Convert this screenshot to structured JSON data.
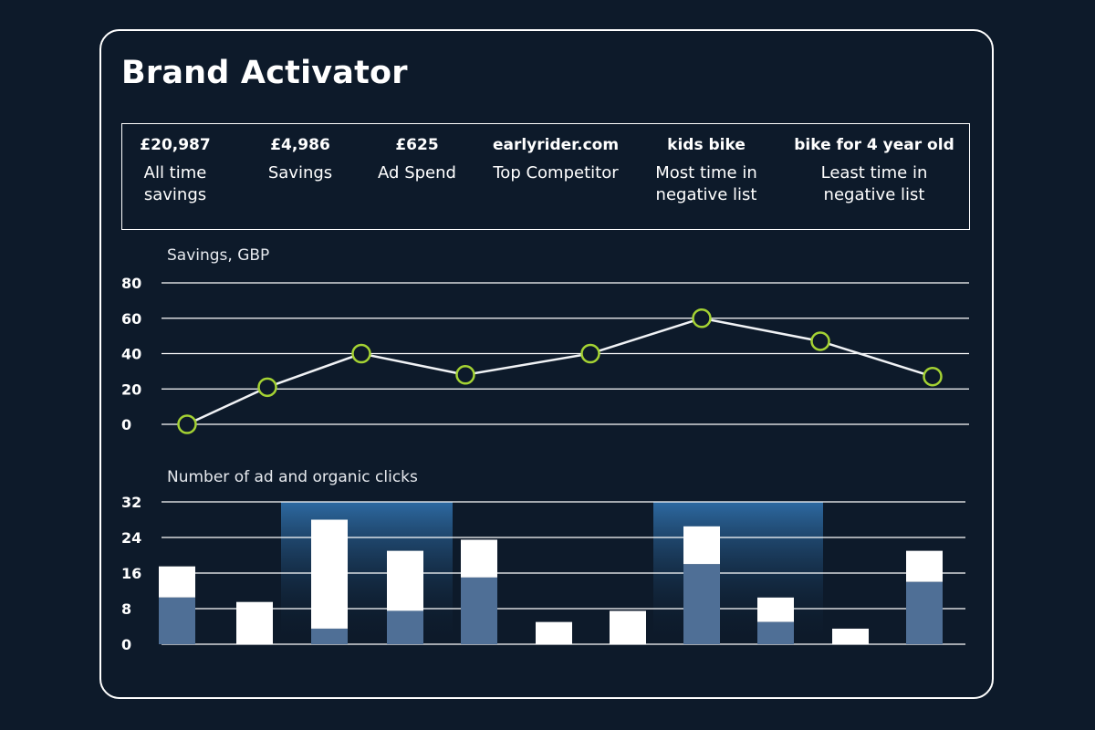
{
  "title": "Brand Activator",
  "stats": [
    {
      "value": "£20,987",
      "label": "All time\nsavings"
    },
    {
      "value": "£4,986",
      "label": "Savings"
    },
    {
      "value": "£625",
      "label": "Ad Spend"
    },
    {
      "value": "earlyrider.com",
      "label": "Top Competitor"
    },
    {
      "value": "kids bike",
      "label": "Most time in\nnegative list"
    },
    {
      "value": "bike for 4 year old",
      "label": "Least time in\nnegative list"
    }
  ],
  "colors": {
    "background": "#0d1a2a",
    "marker": "#a4d233",
    "ad_clicks": "#4f6f96",
    "organic_clicks": "#ffffff",
    "highlight": "#2f6ea8"
  },
  "chart_data": [
    {
      "type": "line",
      "title": "Savings, GBP",
      "yticks": [
        "80",
        "60",
        "40",
        "20",
        "0"
      ],
      "ylim": [
        0,
        80
      ],
      "values": [
        0,
        21,
        40,
        28,
        40,
        60,
        47,
        27
      ]
    },
    {
      "type": "bar",
      "stacked": true,
      "title": "Number of ad and organic clicks",
      "yticks": [
        "32",
        "24",
        "16",
        "8",
        "0"
      ],
      "ylim": [
        0,
        32
      ],
      "series": [
        {
          "name": "ad",
          "values": [
            10.5,
            0,
            3.5,
            7.5,
            15,
            0,
            0,
            18,
            5,
            0,
            14
          ]
        },
        {
          "name": "organic",
          "values": [
            7,
            9.5,
            24.5,
            13.5,
            8.5,
            5,
            7.5,
            8.5,
            5.5,
            3.5,
            7
          ]
        }
      ],
      "highlight_groups": [
        [
          2,
          3
        ],
        [
          7,
          8
        ]
      ]
    }
  ]
}
